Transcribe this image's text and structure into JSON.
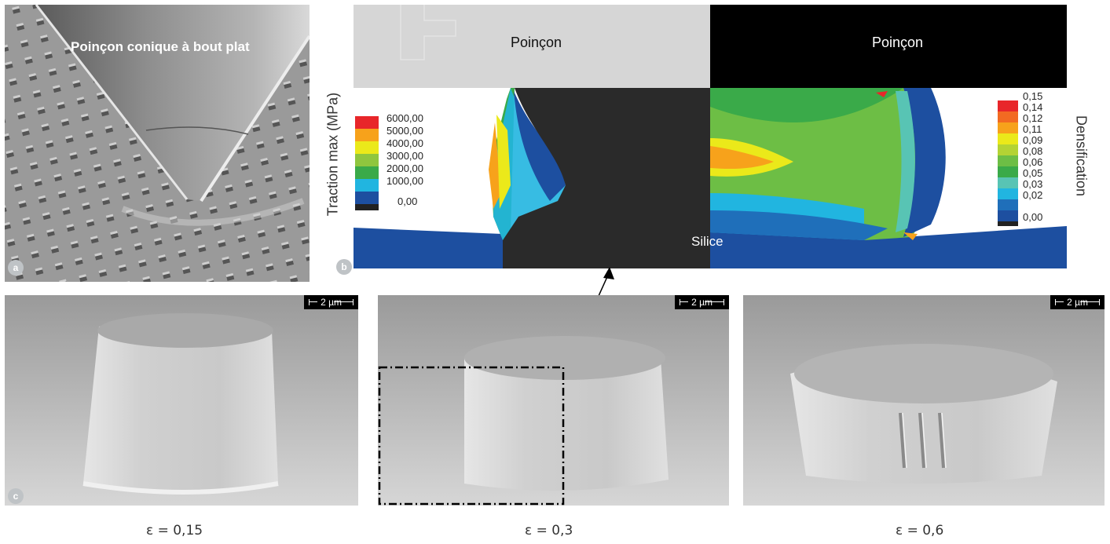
{
  "panel_a": {
    "badge": "a",
    "label": "Poinçon conique à bout plat"
  },
  "panel_b": {
    "badge": "b",
    "punch_left": "Poinçon",
    "punch_right": "Poinçon",
    "substrate": "Silice",
    "left_axis_title": "Traction max (MPa)",
    "right_axis_title": "Densification",
    "left_legend": {
      "values": [
        "6000,00",
        "5000,00",
        "4000,00",
        "3000,00",
        "2000,00",
        "1000,00",
        "0,00"
      ],
      "colors": [
        "#e8262a",
        "#f7a21b",
        "#ebe91a",
        "#8fc63e",
        "#3aaa49",
        "#21b5e0",
        "#1d4fa0",
        "#222222"
      ]
    },
    "right_legend": {
      "values": [
        "0,15",
        "0,14",
        "0,12",
        "0,11",
        "0,09",
        "0,08",
        "0,06",
        "0,05",
        "0,03",
        "0,02",
        "0,00"
      ],
      "colors": [
        "#e8262a",
        "#f26a22",
        "#f7a21b",
        "#ebe91a",
        "#b4d334",
        "#6dbe45",
        "#3aaa49",
        "#58c4b4",
        "#21b5e0",
        "#1f6fba",
        "#1d4fa0",
        "#222222"
      ]
    }
  },
  "panel_c": {
    "badge": "c",
    "scale_label": "2 µm",
    "captions": [
      "ε = 0,15",
      "ε = 0,3",
      "ε = 0,6"
    ]
  }
}
